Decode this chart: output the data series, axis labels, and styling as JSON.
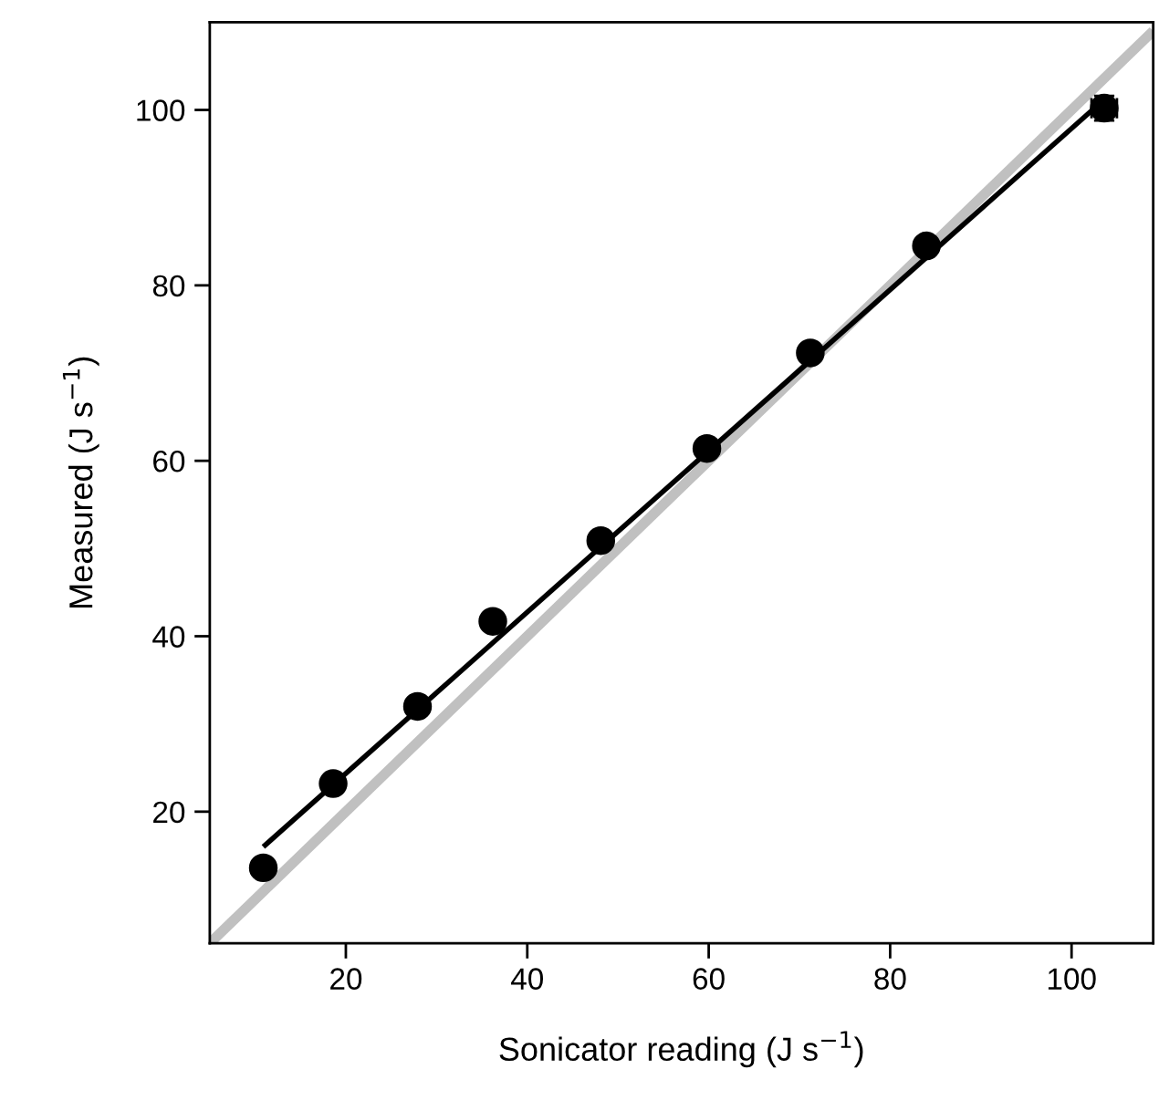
{
  "chart_data": {
    "type": "scatter",
    "xlabel": "Sonicator reading (J s$^{−1}$)",
    "ylabel": "Measured (J s$^{−1}$)",
    "series": [
      {
        "type": "line",
        "color": "#c0c0c0",
        "x": [
          5,
          109
        ],
        "values": [
          5,
          109
        ],
        "marker": "none"
      },
      {
        "type": "line",
        "color": "#000000",
        "x": [
          10.9,
          103.6
        ],
        "values": [
          16.0,
          101.2
        ],
        "marker": "none"
      },
      {
        "color": "#000000",
        "marker": "circle",
        "x": [
          10.9,
          18.6,
          27.9,
          36.2,
          48.1,
          59.8,
          71.2,
          84.0,
          103.6
        ],
        "values": [
          13.6,
          23.2,
          32.0,
          41.7,
          50.9,
          61.4,
          72.3,
          84.5,
          100.2
        ],
        "errors": [
          null,
          null,
          null,
          null,
          null,
          null,
          null,
          null,
          1.4
        ],
        "xerrors": [
          null,
          null,
          null,
          null,
          null,
          null,
          null,
          null,
          1.4
        ]
      }
    ],
    "xlim": [
      5,
      109
    ],
    "ylim": [
      5,
      110
    ],
    "xticks": [
      20,
      40,
      60,
      80,
      100
    ],
    "yticks": [
      20,
      40,
      60,
      80,
      100
    ],
    "grid": false,
    "legend": false
  }
}
